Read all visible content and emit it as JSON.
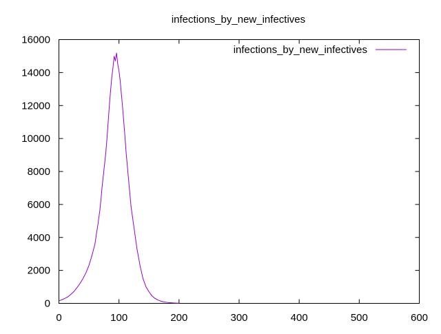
{
  "chart_data": {
    "type": "line",
    "title": "infections_by_new_infectives",
    "xlabel": "",
    "ylabel": "",
    "xlim": [
      0,
      600
    ],
    "ylim": [
      0,
      16000
    ],
    "xticks": [
      0,
      100,
      200,
      300,
      400,
      500,
      600
    ],
    "yticks": [
      0,
      2000,
      4000,
      6000,
      8000,
      10000,
      12000,
      14000,
      16000
    ],
    "grid": false,
    "legend_position": "top-right",
    "series": [
      {
        "name": "infections_by_new_infectives",
        "color": "#9400d3",
        "x": [
          0,
          5,
          10,
          15,
          20,
          25,
          30,
          35,
          40,
          45,
          50,
          55,
          60,
          62,
          65,
          68,
          70,
          72,
          75,
          78,
          80,
          82,
          84,
          86,
          88,
          90,
          92,
          94,
          96,
          98,
          100,
          102,
          104,
          106,
          108,
          110,
          112,
          115,
          118,
          120,
          125,
          130,
          135,
          140,
          145,
          150,
          155,
          160,
          165,
          170,
          175,
          180,
          185,
          190,
          195,
          200
        ],
        "values": [
          150,
          220,
          300,
          400,
          550,
          720,
          950,
          1200,
          1500,
          1850,
          2300,
          2900,
          3600,
          4100,
          4800,
          5600,
          6300,
          7100,
          8100,
          9100,
          10000,
          11000,
          12000,
          12900,
          13700,
          14300,
          15000,
          14700,
          15200,
          14500,
          14100,
          13500,
          12700,
          11900,
          11000,
          10100,
          9100,
          7900,
          6700,
          5900,
          4600,
          3300,
          2300,
          1500,
          1000,
          700,
          450,
          300,
          200,
          130,
          90,
          60,
          40,
          25,
          15,
          8
        ]
      }
    ]
  }
}
